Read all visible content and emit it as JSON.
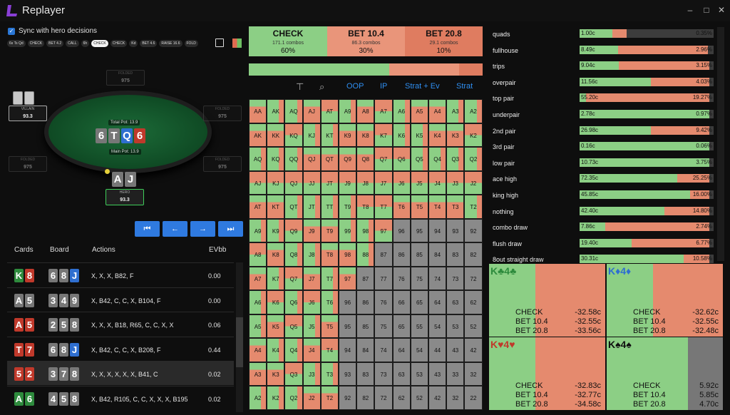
{
  "app": {
    "title": "Replayer",
    "logo_color": "#8a3fd6"
  },
  "sync": {
    "label": "Sync with hero decisions",
    "checked": true
  },
  "action_chips": [
    "6s Ts Qd",
    "CHECK",
    "BET 4.2",
    "CALL",
    "6h",
    "CHECK",
    "CHECK",
    "Kd",
    "BET 4.6",
    "RAISE 16.6",
    "FOLD"
  ],
  "active_chip": 5,
  "table": {
    "villain": {
      "name": "VILLAIN",
      "stack": "93.3"
    },
    "hero": {
      "name": "HERO",
      "stack": "93.3"
    },
    "folded": [
      {
        "name": "FOLDED",
        "stack": "975"
      },
      {
        "name": "FOLDED",
        "stack": "975"
      },
      {
        "name": "FOLDED",
        "stack": "975"
      },
      {
        "name": "FOLDED",
        "stack": "975"
      }
    ],
    "total_pot": "Total Pot: 13.9",
    "main_pot": "Main Pot: 13.9",
    "board": [
      {
        "r": "6",
        "c": "#777"
      },
      {
        "r": "T",
        "c": "#777"
      },
      {
        "r": "Q",
        "c": "#2f6fd0"
      },
      {
        "r": "6",
        "c": "#c0392b"
      }
    ],
    "hero_cards": [
      {
        "r": "A",
        "c": "#777"
      },
      {
        "r": "J",
        "c": "#777"
      }
    ]
  },
  "nav": {
    "first": "⏮",
    "prev": "←",
    "next": "→",
    "last": "⏭"
  },
  "hands_table": {
    "headers": {
      "cards": "Cards",
      "board": "Board",
      "actions": "Actions",
      "ev": "EVbb"
    },
    "rows": [
      {
        "cards": [
          {
            "r": "K",
            "c": "#2e8b3d"
          },
          {
            "r": "8",
            "c": "#c0392b"
          }
        ],
        "board": [
          {
            "r": "6",
            "c": "#777"
          },
          {
            "r": "8",
            "c": "#777"
          },
          {
            "r": "J",
            "c": "#2f6fd0"
          }
        ],
        "actions": "X, X, X, B82, F",
        "ev": "0.00"
      },
      {
        "cards": [
          {
            "r": "A",
            "c": "#777"
          },
          {
            "r": "5",
            "c": "#777"
          }
        ],
        "board": [
          {
            "r": "3",
            "c": "#777"
          },
          {
            "r": "4",
            "c": "#777"
          },
          {
            "r": "9",
            "c": "#777"
          }
        ],
        "actions": "X, B42, C, C, X, B104, F",
        "ev": "0.00"
      },
      {
        "cards": [
          {
            "r": "A",
            "c": "#c0392b"
          },
          {
            "r": "5",
            "c": "#c0392b"
          }
        ],
        "board": [
          {
            "r": "2",
            "c": "#777"
          },
          {
            "r": "5",
            "c": "#777"
          },
          {
            "r": "8",
            "c": "#777"
          }
        ],
        "actions": "X, X, X, B18, R65, C, C, X, X",
        "ev": "0.06"
      },
      {
        "cards": [
          {
            "r": "T",
            "c": "#c0392b"
          },
          {
            "r": "7",
            "c": "#c0392b"
          }
        ],
        "board": [
          {
            "r": "6",
            "c": "#777"
          },
          {
            "r": "8",
            "c": "#777"
          },
          {
            "r": "J",
            "c": "#2f6fd0"
          }
        ],
        "actions": "X, B42, C, C, X, B208, F",
        "ev": "0.44"
      },
      {
        "cards": [
          {
            "r": "5",
            "c": "#c0392b"
          },
          {
            "r": "2",
            "c": "#c0392b"
          }
        ],
        "board": [
          {
            "r": "3",
            "c": "#777"
          },
          {
            "r": "7",
            "c": "#777"
          },
          {
            "r": "8",
            "c": "#777"
          }
        ],
        "actions": "X, X, X, X, X, X, B41, C",
        "ev": "0.02"
      },
      {
        "cards": [
          {
            "r": "A",
            "c": "#2e8b3d"
          },
          {
            "r": "6",
            "c": "#2e8b3d"
          }
        ],
        "board": [
          {
            "r": "4",
            "c": "#777"
          },
          {
            "r": "5",
            "c": "#777"
          },
          {
            "r": "8",
            "c": "#777"
          }
        ],
        "actions": "X, B42, R105, C, C, X, X, X, B195",
        "ev": "0.02"
      }
    ]
  },
  "strategy_summary": [
    {
      "name": "CHECK",
      "combos": "171.1 combos",
      "pct": "60%",
      "color": "#8ccf85",
      "freq": 0.6
    },
    {
      "name": "BET 10.4",
      "combos": "86.3 combos",
      "pct": "30%",
      "color": "#e9957a",
      "freq": 0.3
    },
    {
      "name": "BET 20.8",
      "combos": "29.1 combos",
      "pct": "10%",
      "color": "#df7c60",
      "freq": 0.1
    }
  ],
  "mid_tools": {
    "oop": "OOP",
    "ip": "IP",
    "strat_ev": "Strat + Ev",
    "strat": "Strat",
    "icon_filter": "filter-icon",
    "icon_zoom": "zoom-icon"
  },
  "ranks": [
    "A",
    "K",
    "Q",
    "J",
    "T",
    "9",
    "8",
    "7",
    "6",
    "5",
    "4",
    "3",
    "2"
  ],
  "grid_colors": {
    "green": "#8ccf85",
    "red": "#e58a6e",
    "gray": "#8a8a8a",
    "empty": "#7a7a7a"
  },
  "categories": [
    {
      "name": "quads",
      "value": "1.00c",
      "pct": "0.35%",
      "frac": 0.35,
      "green": 0.7
    },
    {
      "name": "fullhouse",
      "value": "8.49c",
      "pct": "2.96%",
      "frac": 0.96,
      "green": 0.3
    },
    {
      "name": "trips",
      "value": "9.04c",
      "pct": "3.15%",
      "frac": 0.97,
      "green": 0.3
    },
    {
      "name": "overpair",
      "value": "11.56c",
      "pct": "4.03%",
      "frac": 0.97,
      "green": 0.55
    },
    {
      "name": "top pair",
      "value": "55.20c",
      "pct": "19.27%",
      "frac": 0.97,
      "green": 0.05
    },
    {
      "name": "underpair",
      "value": "2.78c",
      "pct": "0.97%",
      "frac": 0.97,
      "green": 1.0
    },
    {
      "name": "2nd pair",
      "value": "26.98c",
      "pct": "9.42%",
      "frac": 0.97,
      "green": 0.55
    },
    {
      "name": "3rd pair",
      "value": "0.16c",
      "pct": "0.06%",
      "frac": 0.97,
      "green": 1.0
    },
    {
      "name": "low pair",
      "value": "10.73c",
      "pct": "3.75%",
      "frac": 0.97,
      "green": 1.0
    },
    {
      "name": "ace high",
      "value": "72.35c",
      "pct": "25.25%",
      "frac": 0.97,
      "green": 0.75
    },
    {
      "name": "king high",
      "value": "45.85c",
      "pct": "16.00%",
      "frac": 0.97,
      "green": 0.85
    },
    {
      "name": "nothing",
      "value": "42.40c",
      "pct": "14.80%",
      "frac": 0.97,
      "green": 0.65
    },
    {
      "name": "combo draw",
      "value": "7.86c",
      "pct": "2.74%",
      "frac": 0.97,
      "green": 0.2
    },
    {
      "name": "flush draw",
      "value": "19.40c",
      "pct": "6.77%",
      "frac": 0.97,
      "green": 0.4
    },
    {
      "name": "8out straight draw",
      "value": "30.31c",
      "pct": "10.58%",
      "frac": 0.97,
      "green": 0.8
    }
  ],
  "combos": [
    {
      "title": "K♣4♣",
      "color": "#2e8b3d",
      "lines": [
        [
          "CHECK",
          "-32.58c"
        ],
        [
          "BET 10.4",
          "-32.55c"
        ],
        [
          "BET 20.8",
          "-33.56c"
        ]
      ]
    },
    {
      "title": "K♦4♦",
      "color": "#2f6fd0",
      "lines": [
        [
          "CHECK",
          "-32.62c"
        ],
        [
          "BET 10.4",
          "-32.55c"
        ],
        [
          "BET 20.8",
          "-32.48c"
        ]
      ]
    },
    {
      "title": "K♥4♥",
      "color": "#c0392b",
      "lines": [
        [
          "CHECK",
          "-32.83c"
        ],
        [
          "BET 10.4",
          "-32.77c"
        ],
        [
          "BET 20.8",
          "-34.58c"
        ]
      ]
    },
    {
      "title": "K♠4♠",
      "color": "#111111",
      "lines": [
        [
          "CHECK",
          "5.92c"
        ],
        [
          "BET 10.4",
          "5.85c"
        ],
        [
          "BET 20.8",
          "4.70c"
        ]
      ]
    }
  ]
}
